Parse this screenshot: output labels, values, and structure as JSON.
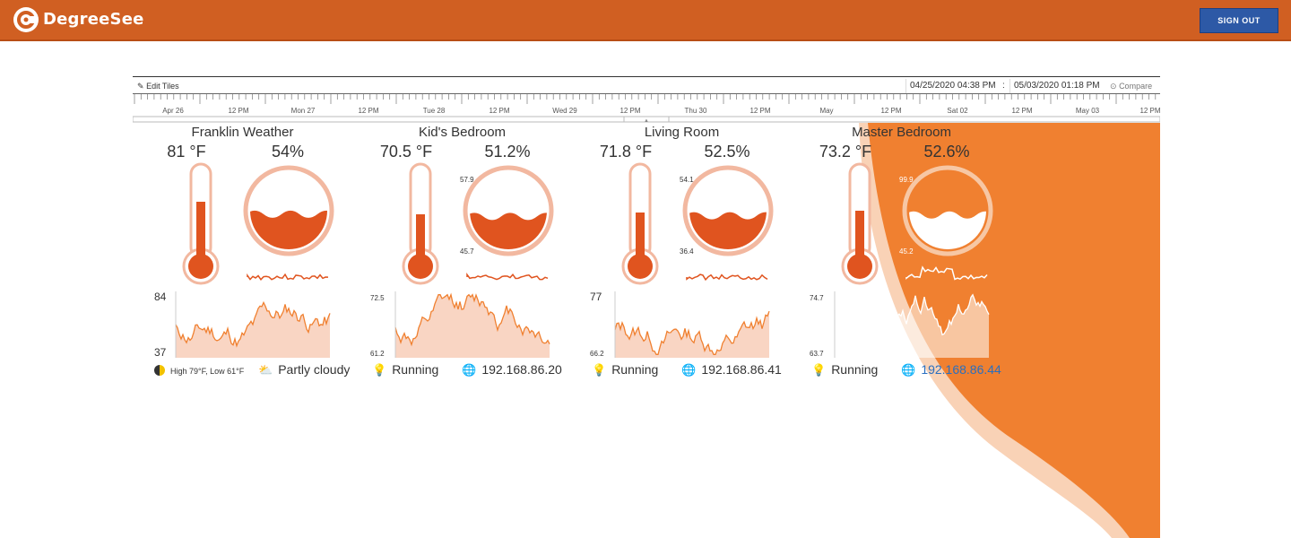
{
  "app": {
    "name": "DegreeSee",
    "sign_out_label": "SIGN OUT"
  },
  "toolbar": {
    "edit_tiles_label": "Edit Tiles",
    "start_datetime": "04/25/2020 04:38 PM",
    "separator": ":",
    "end_datetime": "05/03/2020 01:18 PM",
    "compare_label": "Compare"
  },
  "timeline": {
    "labels": [
      "Apr 26",
      "12 PM",
      "Mon 27",
      "12 PM",
      "Tue 28",
      "12 PM",
      "Wed 29",
      "12 PM",
      "Thu 30",
      "12 PM",
      "May",
      "12 PM",
      "Sat 02",
      "12 PM",
      "May 03",
      "12 PM"
    ]
  },
  "colors": {
    "header": "#d05f22",
    "accent": "#e0541f",
    "accent_light": "#f2b8a0",
    "button": "#2d59a6",
    "wave": "#f08030"
  },
  "tiles": [
    {
      "title": "Franklin Weather",
      "temperature": "81 °F",
      "humidity": "54%",
      "temp_level": 0.62,
      "humidity_level": 0.54,
      "chart_max": "84",
      "chart_min": "37",
      "status_icon": "moon-icon",
      "status_text": "High 79°F, Low 61°F",
      "info_icon": "partly-cloudy-icon",
      "info_text": "Partly cloudy"
    },
    {
      "title": "Kid's Bedroom",
      "temperature": "70.5 °F",
      "humidity": "51.2%",
      "temp_level": 0.48,
      "humidity_level": 0.51,
      "humidity_max": "57.9",
      "humidity_min": "45.7",
      "chart_max": "72.5",
      "chart_min": "61.2",
      "status_icon": "lightbulb-icon",
      "status_text": "Running",
      "info_icon": "globe-icon",
      "info_text": "192.168.86.20"
    },
    {
      "title": "Living Room",
      "temperature": "71.8 °F",
      "humidity": "52.5%",
      "temp_level": 0.5,
      "humidity_level": 0.52,
      "humidity_max": "54.1",
      "humidity_min": "36.4",
      "chart_max": "77",
      "chart_min": "66.2",
      "status_icon": "lightbulb-icon",
      "status_text": "Running",
      "info_icon": "globe-icon",
      "info_text": "192.168.86.41"
    },
    {
      "title": "Master Bedroom",
      "temperature": "73.2 °F",
      "humidity": "52.6%",
      "temp_level": 0.52,
      "humidity_level": 0.53,
      "humidity_max": "99.9",
      "humidity_min": "45.2",
      "chart_max": "74.7",
      "chart_min": "63.7",
      "status_icon": "lightbulb-icon",
      "status_text": "Running",
      "info_icon": "globe-icon",
      "info_text": "192.168.86.44"
    }
  ]
}
